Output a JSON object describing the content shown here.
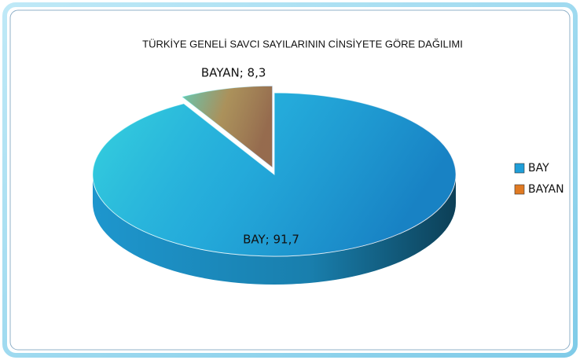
{
  "chart_data": {
    "type": "pie",
    "title": "TÜRKİYE GENELİ SAVCI SAYILARININ CİNSİYETE GÖRE DAĞILIMI",
    "categories": [
      "BAY",
      "BAYAN"
    ],
    "values": [
      91.7,
      8.3
    ],
    "value_labels": [
      "BAY; 91,7",
      "BAYAN; 8,3"
    ],
    "colors": [
      "#1f9ed8",
      "#e07a22"
    ],
    "legend": "right"
  }
}
